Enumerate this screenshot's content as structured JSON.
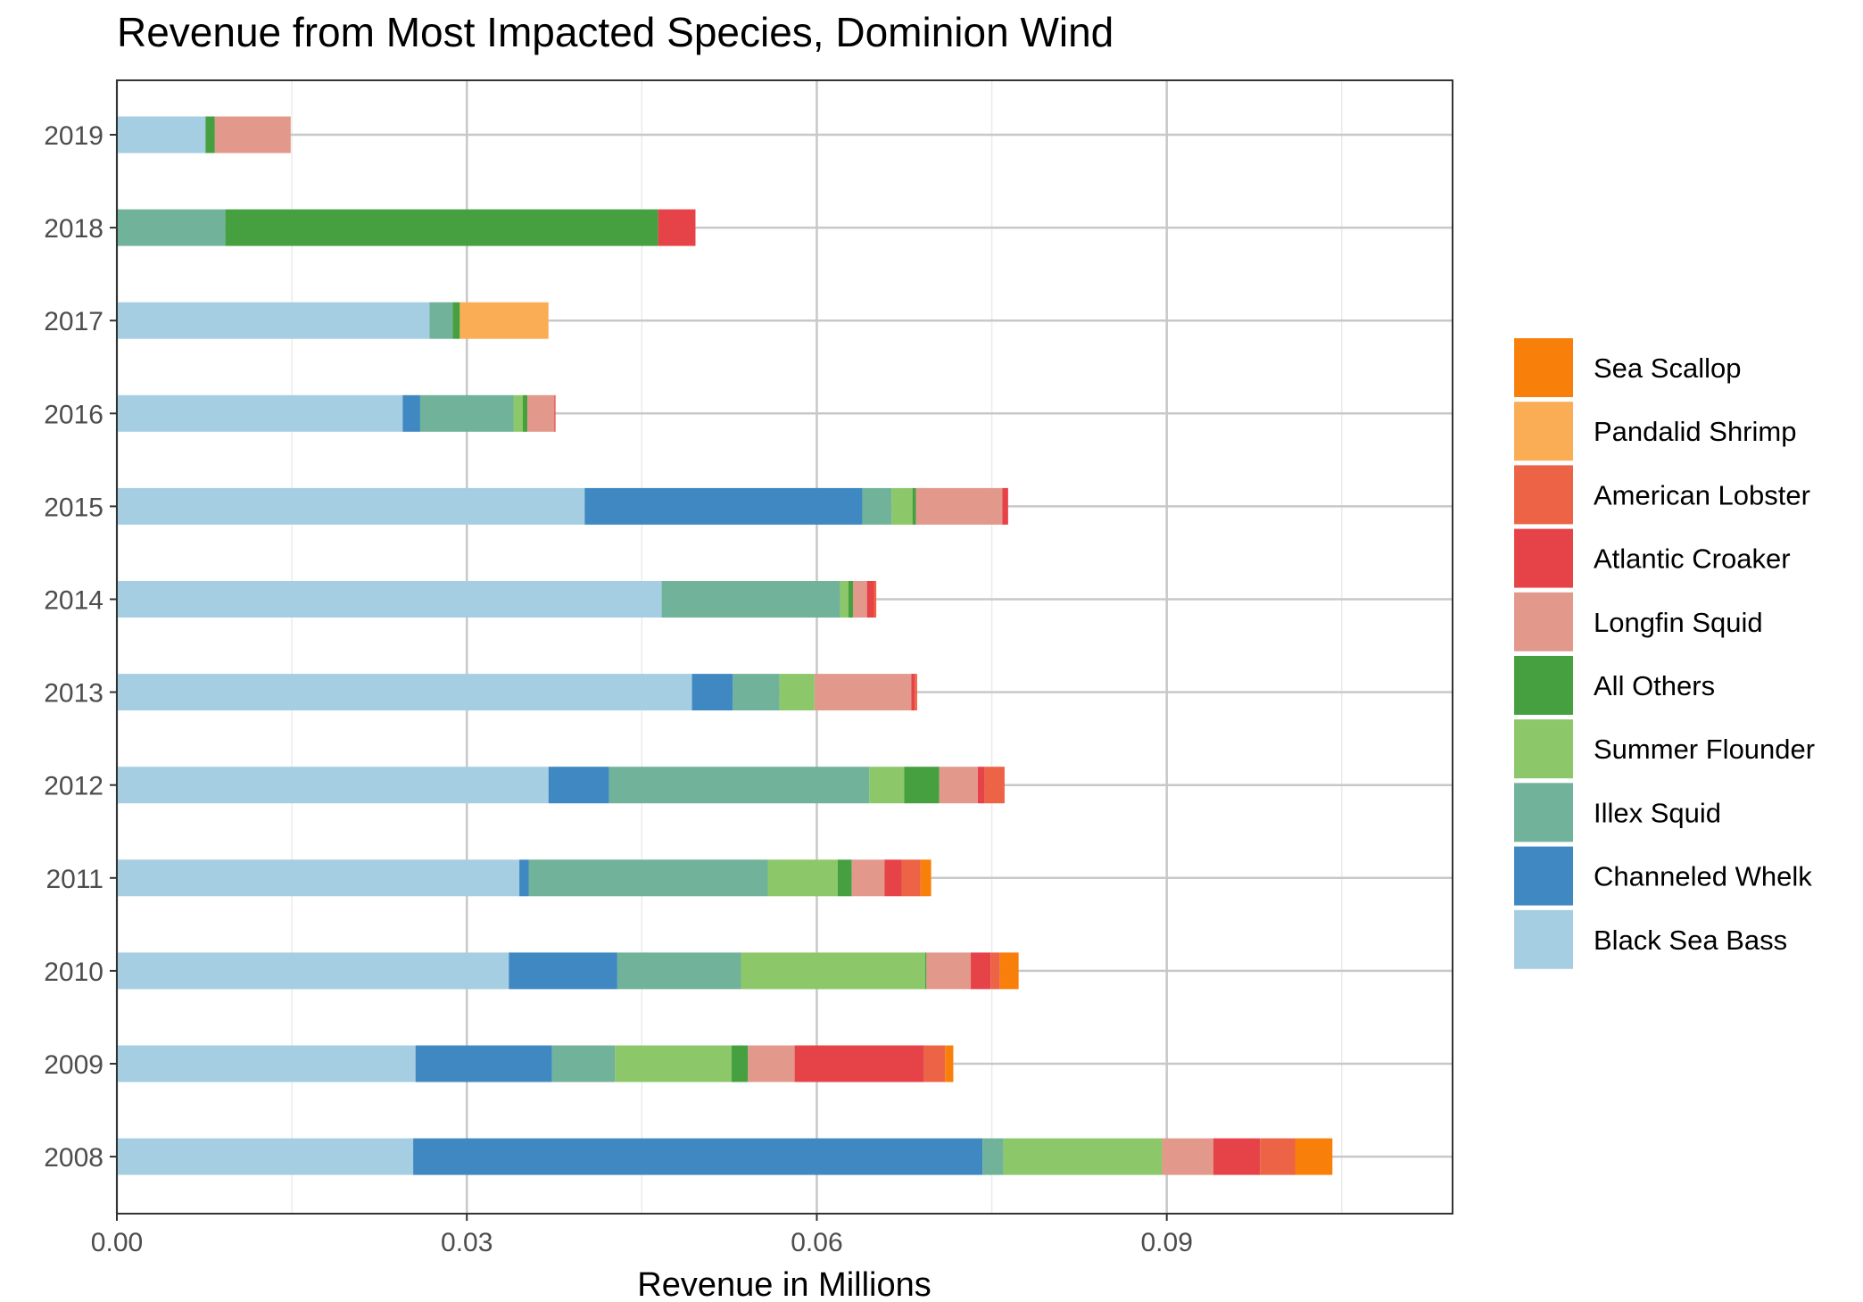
{
  "chart_data": {
    "type": "bar",
    "orientation": "horizontal",
    "stacked": true,
    "title": "Revenue from Most Impacted Species, Dominion Wind",
    "xlabel": "Revenue in Millions",
    "ylabel": "",
    "xlim": [
      0,
      0.1145
    ],
    "x_ticks": [
      "0.00",
      "0.03",
      "0.06",
      "0.09"
    ],
    "x_tick_values": [
      0,
      0.03,
      0.06,
      0.09
    ],
    "grid": true,
    "legend_position": "right",
    "categories": [
      "2019",
      "2018",
      "2017",
      "2016",
      "2015",
      "2014",
      "2013",
      "2012",
      "2011",
      "2010",
      "2009",
      "2008"
    ],
    "series": [
      {
        "name": "Black Sea Bass",
        "color": "#a6cee3",
        "values": [
          0.0076,
          0,
          0.0268,
          0.0245,
          0.0401,
          0.0467,
          0.0493,
          0.037,
          0.0345,
          0.0336,
          0.0256,
          0.0254
        ]
      },
      {
        "name": "Channeled Whelk",
        "color": "#3f88c2",
        "values": [
          0,
          0,
          0,
          0.0015,
          0.0238,
          0,
          0.0035,
          0.0052,
          0.0008,
          0.0093,
          0.0117,
          0.0488
        ]
      },
      {
        "name": "Illex Squid",
        "color": "#70b29a",
        "values": [
          0,
          0.0093,
          0.002,
          0.008,
          0.0025,
          0.0153,
          0.004,
          0.0223,
          0.0205,
          0.0106,
          0.0054,
          0.0018
        ]
      },
      {
        "name": "Summer Flounder",
        "color": "#8cc769",
        "values": [
          0,
          0,
          0,
          0.0008,
          0.0018,
          0.0007,
          0.003,
          0.003,
          0.006,
          0.0158,
          0.01,
          0.0136
        ]
      },
      {
        "name": "All Others",
        "color": "#46a040",
        "values": [
          0.0008,
          0.0371,
          0.0006,
          0.0004,
          0.0003,
          0.0004,
          0,
          0.003,
          0.0012,
          0.0001,
          0.0014,
          0
        ]
      },
      {
        "name": "Longfin Squid",
        "color": "#e3988c",
        "values": [
          0.0065,
          0,
          0,
          0.0023,
          0.0074,
          0.0012,
          0.0083,
          0.0033,
          0.0028,
          0.0038,
          0.004,
          0.0044
        ]
      },
      {
        "name": "Atlantic Croaker",
        "color": "#e64348",
        "values": [
          0,
          0.0032,
          0,
          0.0001,
          0.0005,
          0.0006,
          0.0003,
          0.0006,
          0.0015,
          0.0017,
          0.0111,
          0.004
        ]
      },
      {
        "name": "American Lobster",
        "color": "#ec6445",
        "values": [
          0,
          0,
          0,
          0,
          0,
          0.0002,
          0.0002,
          0.0017,
          0.0016,
          0.0008,
          0.0018,
          0.003
        ]
      },
      {
        "name": "Pandalid Shrimp",
        "color": "#fbad56",
        "values": [
          0,
          0,
          0.0076,
          0,
          0,
          0,
          0,
          0,
          0,
          0,
          0,
          0
        ]
      },
      {
        "name": "Sea Scallop",
        "color": "#f97f0b",
        "values": [
          0,
          0,
          0,
          0,
          0,
          0,
          0,
          0,
          0.0009,
          0.0016,
          0.0007,
          0.0032
        ]
      }
    ],
    "legend_order": [
      "Sea Scallop",
      "Pandalid Shrimp",
      "American Lobster",
      "Atlantic Croaker",
      "Longfin Squid",
      "All Others",
      "Summer Flounder",
      "Illex Squid",
      "Channeled Whelk",
      "Black Sea Bass"
    ]
  }
}
